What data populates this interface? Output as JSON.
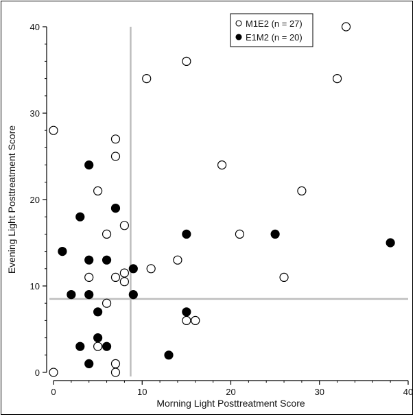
{
  "chart_data": {
    "type": "scatter",
    "title": "",
    "xlabel": "Morning Light Posttreatment Score",
    "ylabel": "Evening Light Posttreatment Score",
    "xlim": [
      0,
      40
    ],
    "ylim": [
      0,
      40
    ],
    "xticks": [
      "0",
      "10",
      "20",
      "30",
      "40"
    ],
    "yticks": [
      "0",
      "10",
      "20",
      "30",
      "40"
    ],
    "grid": false,
    "legend_position": "top-right",
    "reference_lines": {
      "x": 8.7,
      "y": 8.5,
      "color": "#bdbdbd"
    },
    "series": [
      {
        "name": "M1E2 (n = 27)",
        "marker": "open-circle",
        "color": "#000000",
        "points": [
          [
            0,
            28
          ],
          [
            0,
            0
          ],
          [
            33,
            40
          ],
          [
            15,
            36
          ],
          [
            10.5,
            34
          ],
          [
            32,
            34
          ],
          [
            7,
            27
          ],
          [
            7,
            25
          ],
          [
            5,
            21
          ],
          [
            19,
            24
          ],
          [
            28,
            21
          ],
          [
            8,
            17
          ],
          [
            6,
            16
          ],
          [
            21,
            16
          ],
          [
            4,
            11
          ],
          [
            7,
            11
          ],
          [
            8,
            11.5
          ],
          [
            8,
            10.5
          ],
          [
            11,
            12
          ],
          [
            14,
            13
          ],
          [
            26,
            11
          ],
          [
            6,
            8
          ],
          [
            15,
            6
          ],
          [
            16,
            6
          ],
          [
            5,
            3
          ],
          [
            7,
            1
          ],
          [
            7,
            0
          ]
        ]
      },
      {
        "name": "E1M2 (n = 20)",
        "marker": "filled-circle",
        "color": "#000000",
        "points": [
          [
            4,
            24
          ],
          [
            7,
            19
          ],
          [
            3,
            18
          ],
          [
            1,
            14
          ],
          [
            4,
            13
          ],
          [
            6,
            13
          ],
          [
            15,
            16
          ],
          [
            25,
            16
          ],
          [
            38,
            15
          ],
          [
            9,
            12
          ],
          [
            2,
            9
          ],
          [
            4,
            9
          ],
          [
            9,
            9
          ],
          [
            5,
            7
          ],
          [
            15,
            7
          ],
          [
            5,
            4
          ],
          [
            3,
            3
          ],
          [
            6,
            3
          ],
          [
            4,
            1
          ],
          [
            13,
            2
          ]
        ]
      }
    ]
  }
}
